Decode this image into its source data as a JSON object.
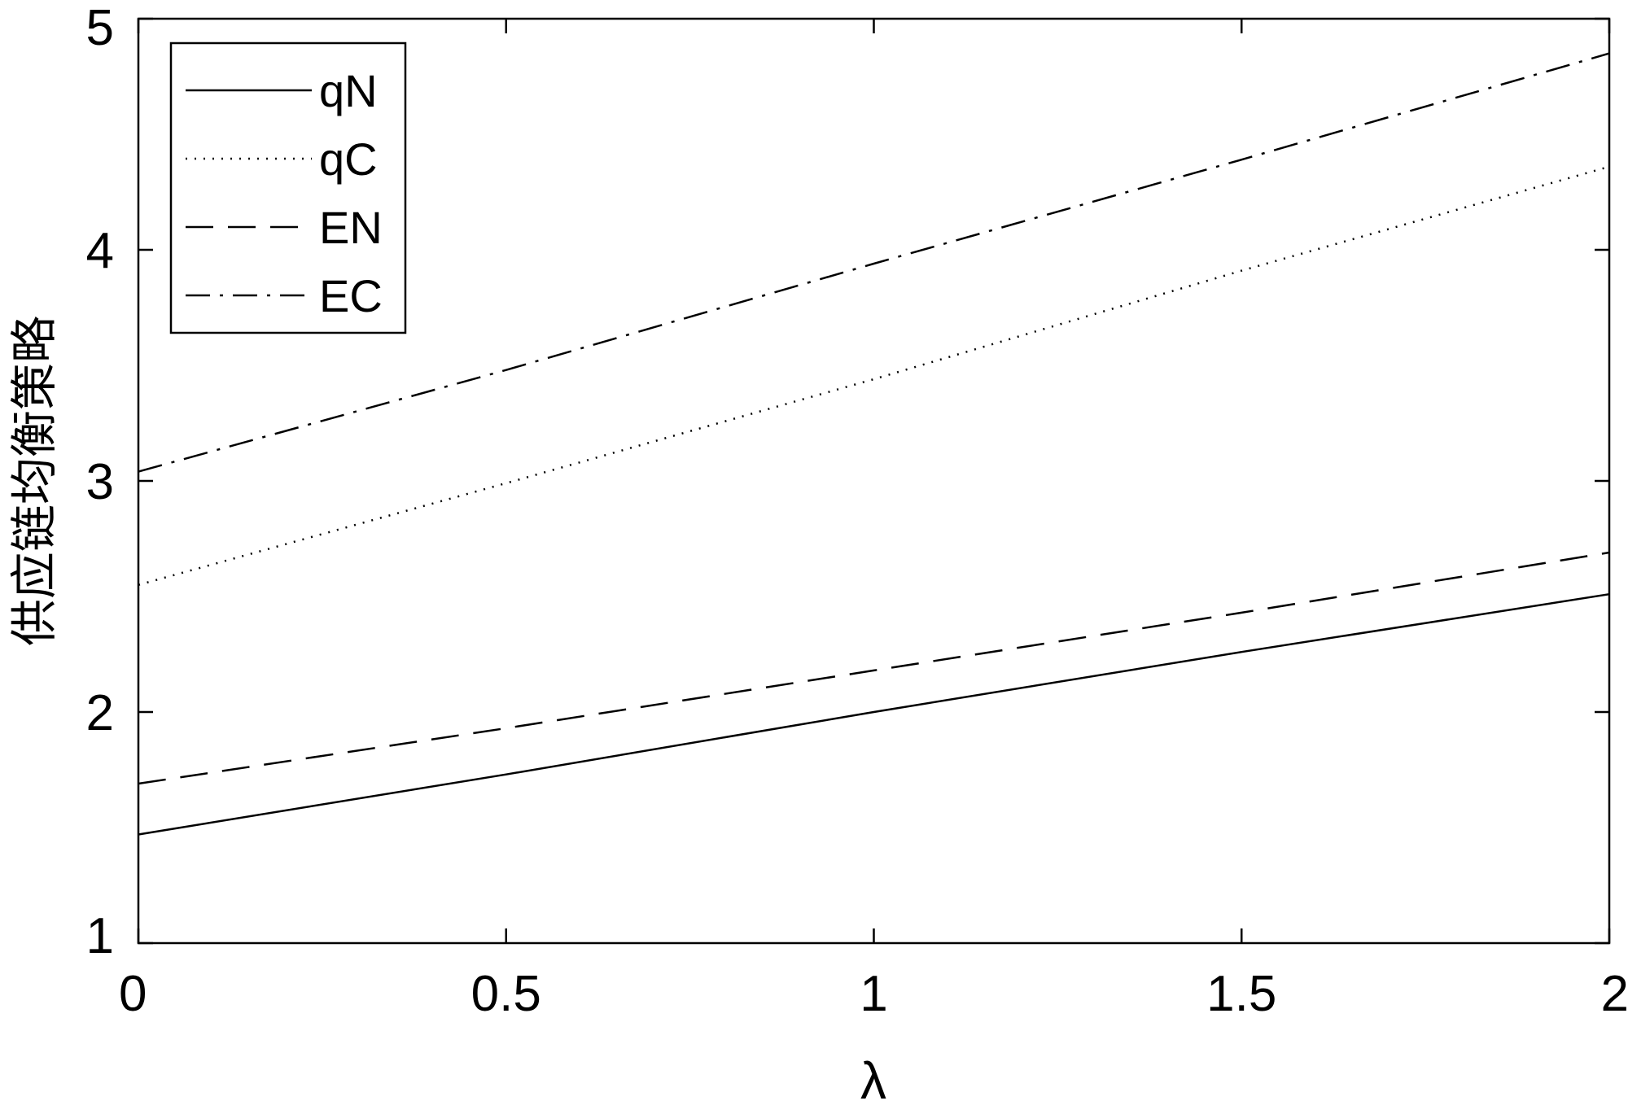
{
  "chart_data": {
    "type": "line",
    "title": "",
    "xlabel": "λ",
    "ylabel": "供应链均衡策略",
    "xlim": [
      0,
      2
    ],
    "ylim": [
      1,
      5
    ],
    "xticks": [
      0,
      0.5,
      1,
      1.5,
      2
    ],
    "yticks": [
      1,
      2,
      3,
      4,
      5
    ],
    "xtick_labels": [
      "0",
      "0.5",
      "1",
      "1.5",
      "2"
    ],
    "ytick_labels": [
      "1",
      "2",
      "3",
      "4",
      "5"
    ],
    "grid": false,
    "legend_position": "top-left",
    "x": [
      0,
      0.5,
      1,
      1.5,
      2
    ],
    "series": [
      {
        "name": "qN",
        "style": "solid",
        "color": "#000000",
        "values": [
          1.47,
          1.73,
          2.0,
          2.26,
          2.51
        ]
      },
      {
        "name": "qC",
        "style": "dotted",
        "color": "#000000",
        "values": [
          2.55,
          2.99,
          3.44,
          3.91,
          4.36
        ]
      },
      {
        "name": "EN",
        "style": "dashed",
        "color": "#000000",
        "values": [
          1.69,
          1.93,
          2.18,
          2.43,
          2.69
        ]
      },
      {
        "name": "EC",
        "style": "dashdot",
        "color": "#000000",
        "values": [
          3.04,
          3.48,
          3.94,
          4.39,
          4.85
        ]
      }
    ]
  }
}
